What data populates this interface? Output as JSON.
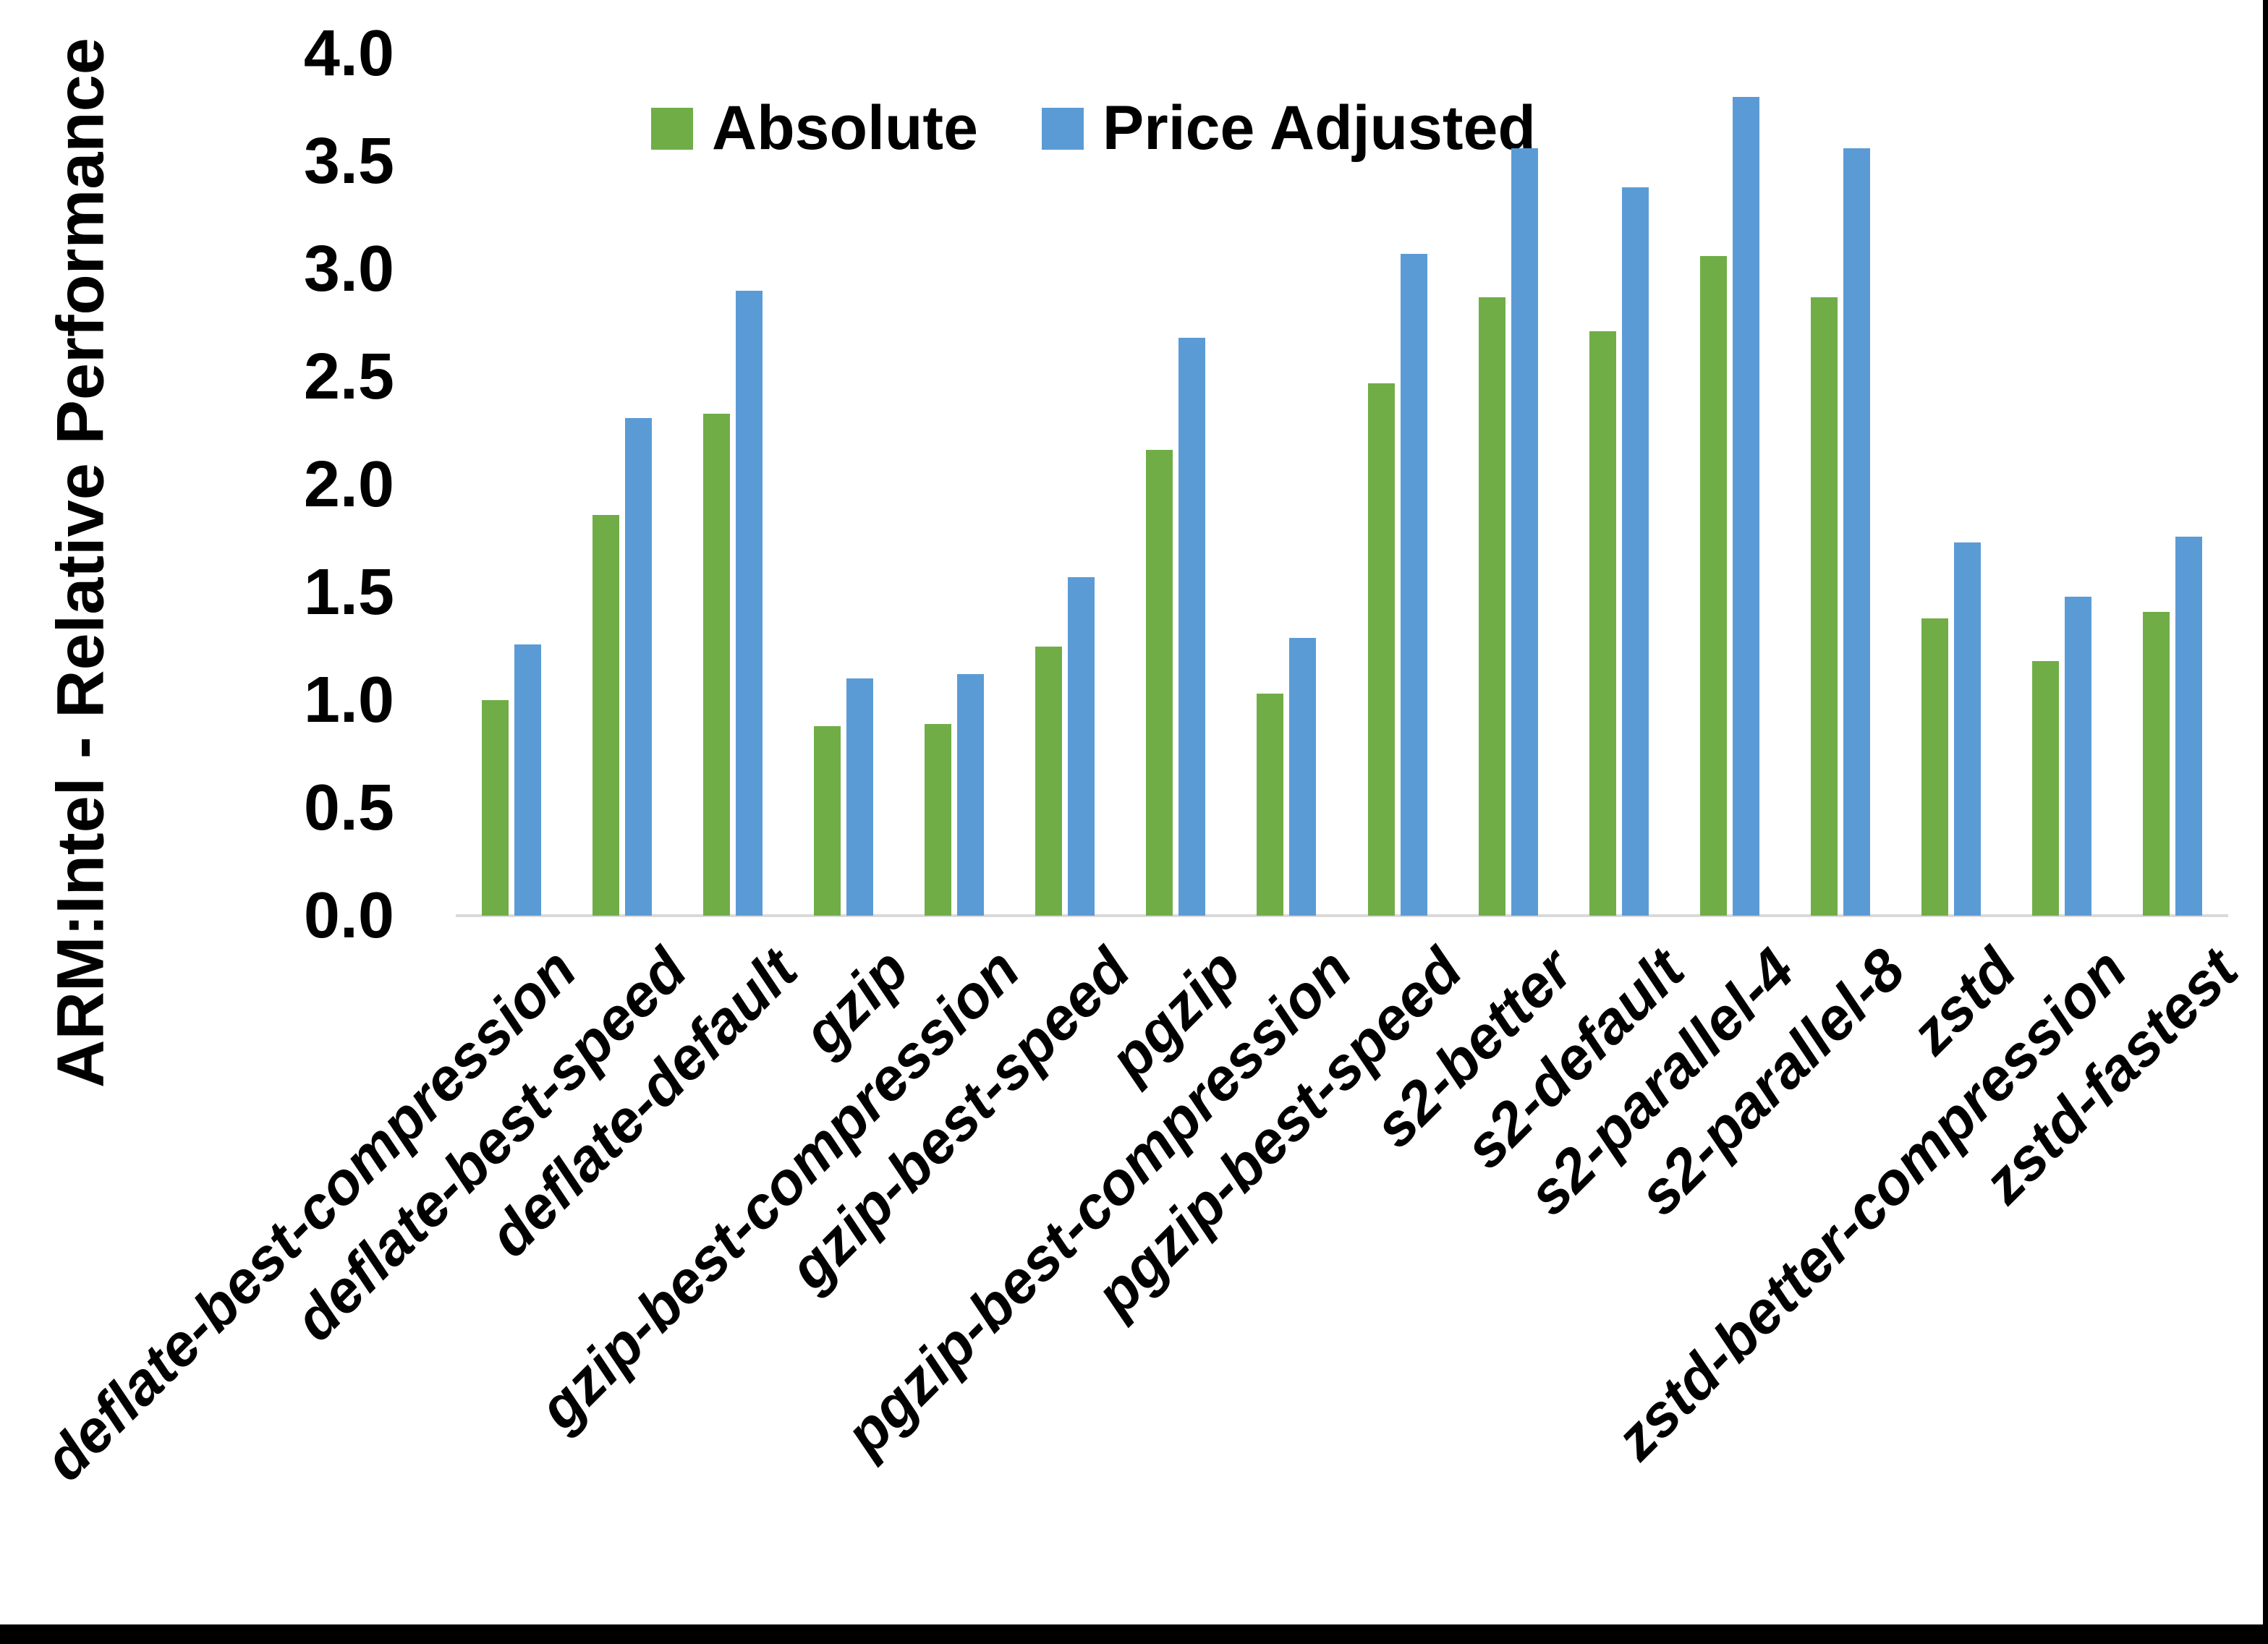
{
  "frame": {
    "background": "#ffffff",
    "axis_line_color": "#d9d9d9",
    "border_color": "#000000"
  },
  "chart_data": {
    "type": "bar",
    "title": "",
    "xlabel": "",
    "ylabel": "ARM:Intel - Relative Performance",
    "ylim": [
      0.0,
      4.0
    ],
    "ytick_step": 0.5,
    "y_tick_labels": [
      "0.0",
      "0.5",
      "1.0",
      "1.5",
      "2.0",
      "2.5",
      "3.0",
      "3.5",
      "4.0"
    ],
    "grid": false,
    "legend_position": "top-center",
    "categories": [
      "deflate-best-compression",
      "deflate-best-speed",
      "deflate-default",
      "gzip",
      "gzip-best-compression",
      "gzip-best-speed",
      "pgzip",
      "pgzip-best-compression",
      "pgzip-best-speed",
      "s2-better",
      "s2-default",
      "s2-parallel-4",
      "s2-parallel-8",
      "zstd",
      "zstd-better-compression",
      "zstd-fastest"
    ],
    "series": [
      {
        "name": "Absolute",
        "color": "#70AD47",
        "values": [
          1.0,
          1.86,
          2.33,
          0.88,
          0.89,
          1.25,
          2.16,
          1.03,
          2.47,
          2.87,
          2.71,
          3.06,
          2.87,
          1.38,
          1.18,
          1.41
        ]
      },
      {
        "name": "Price Adjusted",
        "color": "#5B9BD5",
        "values": [
          1.26,
          2.31,
          2.9,
          1.1,
          1.12,
          1.57,
          2.68,
          1.29,
          3.07,
          3.56,
          3.38,
          3.8,
          3.56,
          1.73,
          1.48,
          1.76
        ]
      }
    ]
  }
}
